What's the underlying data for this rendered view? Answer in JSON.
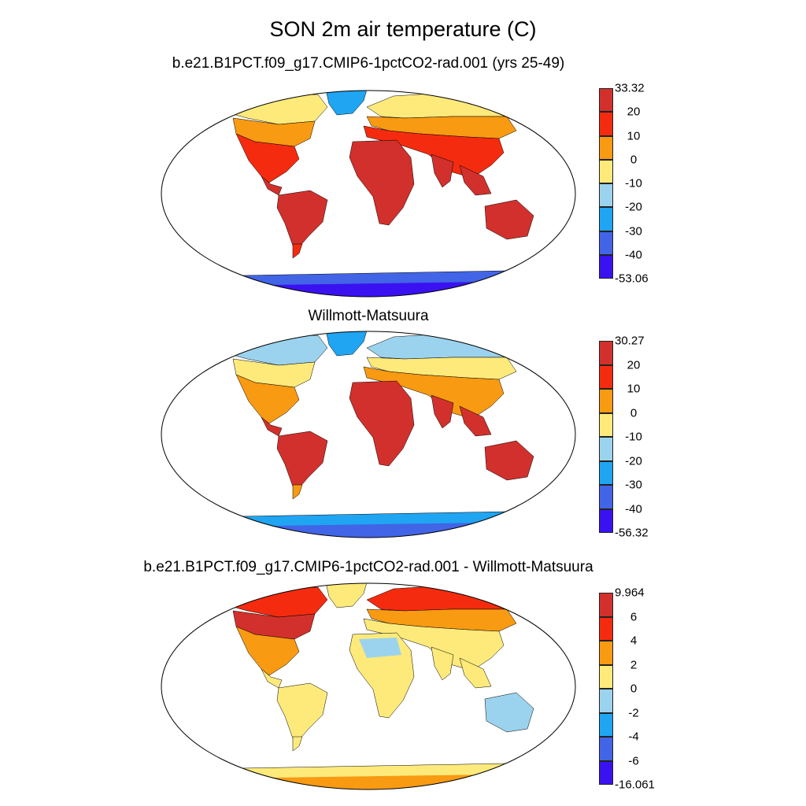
{
  "title": "SON 2m air temperature (C)",
  "panels": [
    {
      "title": "b.e21.B1PCT.f09_g17.CMIP6-1pctCO2-rad.001 (yrs 25-49)",
      "colorbar": {
        "labels": [
          "33.32",
          "20",
          "10",
          "0",
          "-10",
          "-20",
          "-30",
          "-40",
          "-53.06"
        ],
        "colors": [
          "#d2302c",
          "#f52b0f",
          "#f89a12",
          "#fdea7b",
          "#9bd3ee",
          "#1fa5f2",
          "#4264e6",
          "#3a12f2"
        ]
      }
    },
    {
      "title": "Willmott-Matsuura",
      "colorbar": {
        "labels": [
          "30.27",
          "20",
          "10",
          "0",
          "-10",
          "-20",
          "-30",
          "-40",
          "-56.32"
        ],
        "colors": [
          "#d2302c",
          "#f52b0f",
          "#f89a12",
          "#fdea7b",
          "#9bd3ee",
          "#1fa5f2",
          "#4264e6",
          "#3a12f2"
        ]
      }
    },
    {
      "title": "b.e21.B1PCT.f09_g17.CMIP6-1pctCO2-rad.001 - Willmott-Matsuura",
      "colorbar": {
        "labels": [
          "9.964",
          "6",
          "4",
          "2",
          "0",
          "-2",
          "-4",
          "-6",
          "-16.061"
        ],
        "colors": [
          "#d2302c",
          "#f52b0f",
          "#f89a12",
          "#fdea7b",
          "#9bd3ee",
          "#1fa5f2",
          "#4264e6",
          "#3a12f2"
        ]
      }
    }
  ]
}
